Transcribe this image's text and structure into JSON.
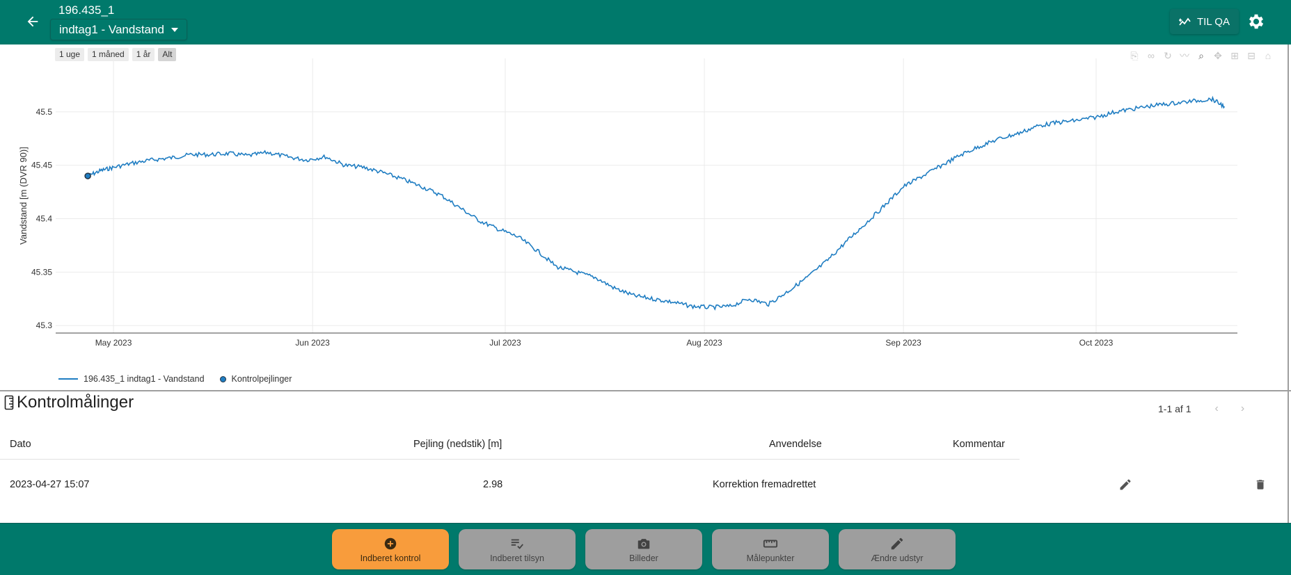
{
  "header": {
    "location_id": "196.435_1",
    "timeseries_select": "indtag1 - Vandstand",
    "qa_button": "TIL QA"
  },
  "plot": {
    "range_buttons": [
      "1 uge",
      "1 måned",
      "1 år",
      "Alt"
    ],
    "active_range": "Alt",
    "modebar_icons": [
      "download-icon",
      "link-icon",
      "rotate-icon",
      "line-icon",
      "zoom-icon",
      "pan-icon",
      "zoom-in-icon",
      "zoom-out-icon",
      "home-icon"
    ]
  },
  "chart_data": {
    "type": "line",
    "xlabel": "",
    "ylabel": "Vandstand [m (DVR 90)]",
    "ylim": [
      45.293,
      45.55
    ],
    "xlim": [
      "2023-04-22",
      "2023-10-23"
    ],
    "x_ticks": [
      "May 2023",
      "Jun 2023",
      "Jul 2023",
      "Aug 2023",
      "Sep 2023",
      "Oct 2023"
    ],
    "y_ticks": [
      "45.3",
      "45.35",
      "45.4",
      "45.45",
      "45.5"
    ],
    "grid": true,
    "legend": "bottom-left",
    "series": [
      {
        "name": "196.435_1 indtag1 - Vandstand",
        "color": "#1f7dc2",
        "x": [
          "2023-04-27",
          "2023-04-29",
          "2023-05-01",
          "2023-05-04",
          "2023-05-07",
          "2023-05-10",
          "2023-05-13",
          "2023-05-16",
          "2023-05-19",
          "2023-05-22",
          "2023-05-25",
          "2023-05-28",
          "2023-05-31",
          "2023-06-03",
          "2023-06-06",
          "2023-06-09",
          "2023-06-12",
          "2023-06-15",
          "2023-06-18",
          "2023-06-21",
          "2023-06-24",
          "2023-06-27",
          "2023-06-30",
          "2023-07-03",
          "2023-07-06",
          "2023-07-09",
          "2023-07-12",
          "2023-07-15",
          "2023-07-18",
          "2023-07-21",
          "2023-07-24",
          "2023-07-27",
          "2023-07-30",
          "2023-08-02",
          "2023-08-05",
          "2023-08-08",
          "2023-08-11",
          "2023-08-14",
          "2023-08-17",
          "2023-08-20",
          "2023-08-23",
          "2023-08-26",
          "2023-08-29",
          "2023-09-01",
          "2023-09-04",
          "2023-09-07",
          "2023-09-10",
          "2023-09-13",
          "2023-09-16",
          "2023-09-19",
          "2023-09-22",
          "2023-09-25",
          "2023-09-28",
          "2023-10-01",
          "2023-10-04",
          "2023-10-07",
          "2023-10-10",
          "2023-10-13",
          "2023-10-16",
          "2023-10-19",
          "2023-10-21"
        ],
        "y": [
          45.44,
          45.445,
          45.448,
          45.452,
          45.455,
          45.457,
          45.46,
          45.46,
          45.461,
          45.459,
          45.462,
          45.458,
          45.455,
          45.458,
          45.45,
          45.448,
          45.443,
          45.437,
          45.43,
          45.422,
          45.41,
          45.398,
          45.39,
          45.383,
          45.37,
          45.355,
          45.35,
          45.345,
          45.335,
          45.328,
          45.325,
          45.322,
          45.318,
          45.317,
          45.318,
          45.325,
          45.32,
          45.332,
          45.345,
          45.36,
          45.378,
          45.395,
          45.412,
          45.43,
          45.44,
          45.45,
          45.46,
          45.468,
          45.475,
          45.48,
          45.487,
          45.49,
          45.492,
          45.495,
          45.5,
          45.503,
          45.506,
          45.508,
          45.51,
          45.512,
          45.505
        ]
      },
      {
        "name": "Kontrolpejlinger",
        "type": "scatter",
        "color": "#1f7dc2",
        "x": [
          "2023-04-27"
        ],
        "y": [
          45.44
        ]
      }
    ]
  },
  "control": {
    "title": "Kontrolmålinger",
    "pager": "1-1 af 1",
    "columns": [
      "Dato",
      "Pejling (nedstik) [m]",
      "Anvendelse",
      "Kommentar"
    ],
    "rows": [
      {
        "date": "2023-04-27 15:07",
        "measurement": "2.98",
        "usage": "Korrektion fremadrettet",
        "comment": ""
      }
    ]
  },
  "bottom_nav": {
    "buttons": [
      "Indberet kontrol",
      "Indberet tilsyn",
      "Billeder",
      "Målepunkter",
      "Ændre udstyr"
    ]
  }
}
